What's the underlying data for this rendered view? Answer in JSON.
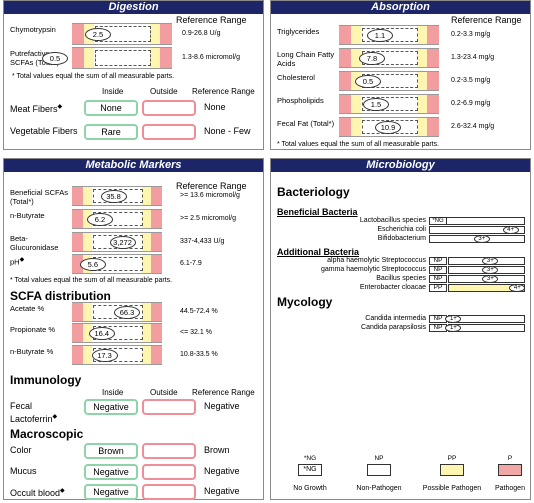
{
  "digestion": {
    "title": "Digestion",
    "reference_header": "Reference Range",
    "tests": [
      {
        "label": "Chymotrypsin",
        "value": "2.5",
        "range": "0.9-26.8 U/g"
      },
      {
        "label": "Putrefactive SCFAs (Total*)",
        "value": "0.5",
        "range": "1.3-8.6 micromol/g"
      }
    ],
    "note": "* Total values equal the sum of all measurable parts.",
    "qualitative": {
      "headers": [
        "Inside",
        "Outside",
        "Reference Range"
      ],
      "rows": [
        {
          "label": "Meat Fibers",
          "flag": "◆",
          "result": "None",
          "range": "None"
        },
        {
          "label": "Vegetable Fibers",
          "result": "Rare",
          "range": "None - Few"
        }
      ]
    }
  },
  "absorption": {
    "title": "Absorption",
    "reference_header": "Reference Range",
    "tests": [
      {
        "label": "Triglycerides",
        "value": "1.1",
        "range": "0.2-3.3 mg/g"
      },
      {
        "label": "Long Chain Fatty Acids",
        "value": "7.8",
        "range": "1.3-23.4 mg/g"
      },
      {
        "label": "Cholesterol",
        "value": "0.5",
        "range": "0.2-3.5 mg/g"
      },
      {
        "label": "Phospholipids",
        "value": "1.5",
        "range": "0.2-6.9 mg/g"
      },
      {
        "label": "Fecal Fat (Total*)",
        "value": "10.9",
        "range": "2.6-32.4 mg/g"
      }
    ],
    "note": "* Total values equal the sum of all measurable parts."
  },
  "metabolic": {
    "title": "Metabolic Markers",
    "reference_header": "Reference Range",
    "tests": [
      {
        "label": "Beneficial SCFAs (Total*)",
        "value": "35.8",
        "range": ">= 13.6 micromol/g"
      },
      {
        "label": "n-Butyrate",
        "value": "6.2",
        "range": ">= 2.5 micromol/g"
      },
      {
        "label": "Beta-Glucuronidase",
        "value": "3,272",
        "range": "337-4,433 U/g"
      },
      {
        "label": "pH",
        "flag": "◆",
        "value": "5.6",
        "range": "6.1-7.9"
      }
    ],
    "note": "* Total values equal the sum of all measurable parts.",
    "scfa": {
      "heading": "SCFA distribution",
      "tests": [
        {
          "label": "Acetate %",
          "value": "66.3",
          "range": "44.5-72.4 %"
        },
        {
          "label": "Propionate  %",
          "value": "16.4",
          "range": "<= 32.1 %"
        },
        {
          "label": "n-Butyrate  %",
          "value": "17.3",
          "range": "10.8-33.5 %"
        }
      ]
    },
    "immunology": {
      "heading": "Immunology",
      "headers": [
        "Inside",
        "Outside",
        "Reference Range"
      ],
      "rows": [
        {
          "label": "Fecal Lactoferrin",
          "flag": "◆",
          "result": "Negative",
          "range": "Negative"
        }
      ]
    },
    "macroscopic": {
      "heading": "Macroscopic",
      "rows": [
        {
          "label": "Color",
          "result": "Brown",
          "range": "Brown"
        },
        {
          "label": "Mucus",
          "result": "Negative",
          "range": "Negative"
        },
        {
          "label": "Occult blood",
          "flag": "◆",
          "result": "Negative",
          "range": "Negative"
        }
      ]
    }
  },
  "microbiology": {
    "title": "Microbiology",
    "bacteriology": {
      "heading": "Bacteriology",
      "beneficial": {
        "heading": "Beneficial Bacteria",
        "rows": [
          {
            "name": "Lactobacillus species",
            "result": "*NG"
          },
          {
            "name": "Escherichia coli",
            "result": "4+"
          },
          {
            "name": "Bifidobacterium",
            "result": "3+"
          }
        ]
      },
      "additional": {
        "heading": "Additional Bacteria",
        "rows": [
          {
            "name": "alpha haemolytic Streptococcus",
            "class": "NP",
            "result": "3+"
          },
          {
            "name": "gamma haemolytic Streptococcus",
            "class": "NP",
            "result": "3+"
          },
          {
            "name": "Bacillus species",
            "class": "NP",
            "result": "3+"
          },
          {
            "name": "Enterobacter cloacae",
            "class": "PP",
            "result": "4+"
          }
        ]
      }
    },
    "mycology": {
      "heading": "Mycology",
      "rows": [
        {
          "name": "Candida intermedia",
          "class": "NP",
          "result": "1+"
        },
        {
          "name": "Candida parapsilosis",
          "class": "NP",
          "result": "1+"
        }
      ]
    },
    "legend": [
      {
        "code": "*NG",
        "sample": "*NG",
        "label": "No Growth"
      },
      {
        "code": "NP",
        "label": "Non-Pathogen"
      },
      {
        "code": "PP",
        "label": "Possible Pathogen"
      },
      {
        "code": "P",
        "label": "Pathogen"
      }
    ]
  }
}
